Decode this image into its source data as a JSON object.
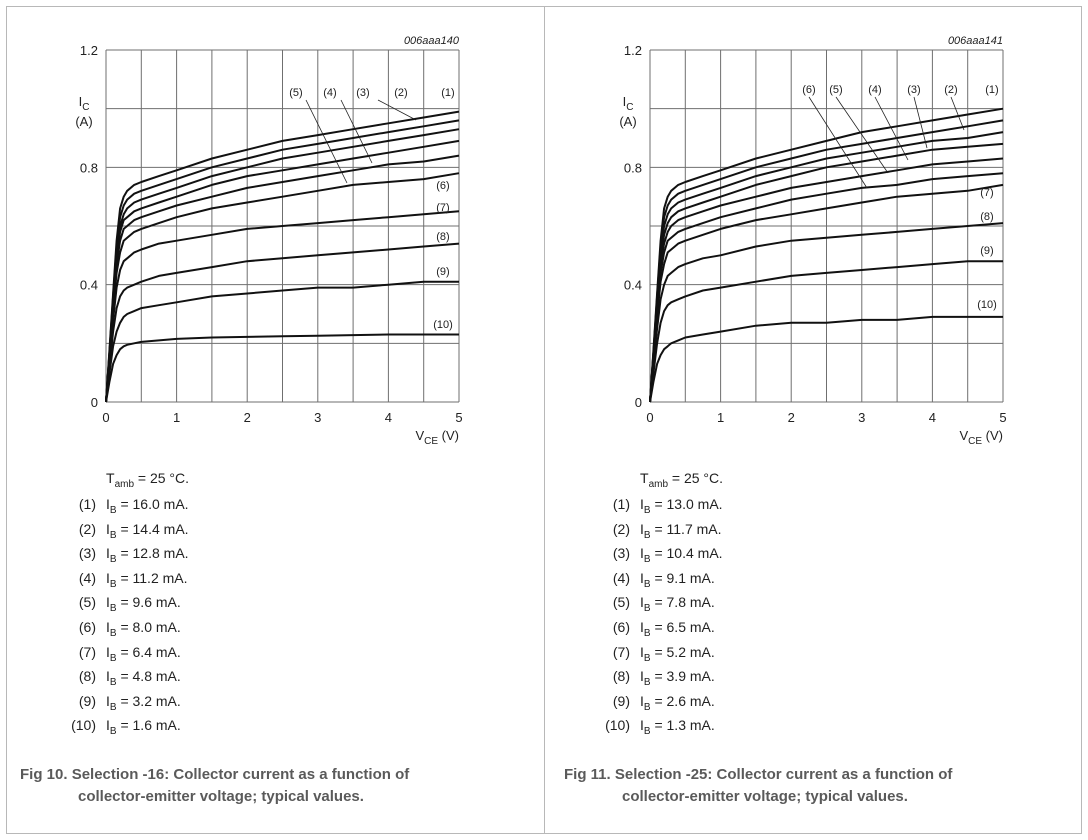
{
  "chart_data": [
    {
      "type": "line",
      "code": "006aaa140",
      "ylabel_sym": "I",
      "ylabel_sub": "C",
      "ylabel_unit": "(A)",
      "xlabel_sym": "V",
      "xlabel_sub": "CE",
      "xlabel_unit": "(V)",
      "xlim": [
        0,
        5
      ],
      "ylim": [
        0,
        1.2
      ],
      "xticks": [
        "0",
        "1",
        "2",
        "3",
        "4",
        "5"
      ],
      "yticks": [
        "0",
        "0.4",
        "0.8",
        "1.2"
      ],
      "grid": true,
      "x": [
        0,
        0.05,
        0.1,
        0.15,
        0.2,
        0.25,
        0.3,
        0.4,
        0.5,
        0.75,
        1,
        1.5,
        2,
        2.5,
        3,
        3.5,
        4,
        4.5,
        5
      ],
      "series": [
        {
          "name": "(1)",
          "values": [
            0,
            0.18,
            0.37,
            0.55,
            0.66,
            0.7,
            0.72,
            0.74,
            0.75,
            0.77,
            0.79,
            0.83,
            0.86,
            0.89,
            0.91,
            0.93,
            0.95,
            0.97,
            0.99
          ]
        },
        {
          "name": "(2)",
          "values": [
            0,
            0.17,
            0.36,
            0.53,
            0.63,
            0.67,
            0.69,
            0.71,
            0.72,
            0.74,
            0.76,
            0.8,
            0.83,
            0.86,
            0.88,
            0.9,
            0.92,
            0.94,
            0.96
          ]
        },
        {
          "name": "(3)",
          "values": [
            0,
            0.17,
            0.35,
            0.51,
            0.6,
            0.64,
            0.66,
            0.68,
            0.69,
            0.71,
            0.73,
            0.77,
            0.8,
            0.83,
            0.85,
            0.87,
            0.89,
            0.91,
            0.93
          ]
        },
        {
          "name": "(4)",
          "values": [
            0,
            0.16,
            0.34,
            0.49,
            0.58,
            0.62,
            0.63,
            0.65,
            0.66,
            0.68,
            0.7,
            0.74,
            0.77,
            0.79,
            0.81,
            0.83,
            0.85,
            0.87,
            0.89
          ]
        },
        {
          "name": "(5)",
          "values": [
            0,
            0.16,
            0.33,
            0.47,
            0.55,
            0.59,
            0.6,
            0.62,
            0.63,
            0.65,
            0.67,
            0.7,
            0.73,
            0.75,
            0.77,
            0.79,
            0.81,
            0.82,
            0.84
          ]
        },
        {
          "name": "(6)",
          "values": [
            0,
            0.15,
            0.31,
            0.44,
            0.51,
            0.55,
            0.56,
            0.58,
            0.59,
            0.61,
            0.63,
            0.66,
            0.68,
            0.7,
            0.72,
            0.74,
            0.75,
            0.76,
            0.78
          ]
        },
        {
          "name": "(7)",
          "values": [
            0,
            0.14,
            0.28,
            0.39,
            0.45,
            0.48,
            0.49,
            0.51,
            0.52,
            0.54,
            0.55,
            0.57,
            0.59,
            0.6,
            0.61,
            0.62,
            0.63,
            0.64,
            0.65
          ]
        },
        {
          "name": "(8)",
          "values": [
            0,
            0.12,
            0.24,
            0.32,
            0.36,
            0.38,
            0.39,
            0.4,
            0.41,
            0.43,
            0.44,
            0.46,
            0.48,
            0.49,
            0.5,
            0.51,
            0.52,
            0.53,
            0.54
          ]
        },
        {
          "name": "(9)",
          "values": [
            0,
            0.1,
            0.19,
            0.24,
            0.27,
            0.29,
            0.3,
            0.31,
            0.32,
            0.33,
            0.34,
            0.36,
            0.37,
            0.38,
            0.39,
            0.39,
            0.4,
            0.41,
            0.41
          ]
        },
        {
          "name": "(10)",
          "values": [
            0,
            0.07,
            0.13,
            0.16,
            0.18,
            0.19,
            0.195,
            0.2,
            0.205,
            0.21,
            0.215,
            0.22,
            0.222,
            0.224,
            0.226,
            0.228,
            0.23,
            0.23,
            0.23
          ]
        }
      ],
      "ambient_label": "T",
      "ambient_sub": "amb",
      "ambient_value": "= 25 °C.",
      "legend": [
        {
          "num": "(1)",
          "sym": "I",
          "sub": "B",
          "text": "= 16.0 mA."
        },
        {
          "num": "(2)",
          "sym": "I",
          "sub": "B",
          "text": "= 14.4 mA."
        },
        {
          "num": "(3)",
          "sym": "I",
          "sub": "B",
          "text": "= 12.8 mA."
        },
        {
          "num": "(4)",
          "sym": "I",
          "sub": "B",
          "text": "= 11.2 mA."
        },
        {
          "num": "(5)",
          "sym": "I",
          "sub": "B",
          "text": "= 9.6 mA."
        },
        {
          "num": "(6)",
          "sym": "I",
          "sub": "B",
          "text": "= 8.0 mA."
        },
        {
          "num": "(7)",
          "sym": "I",
          "sub": "B",
          "text": "= 6.4 mA."
        },
        {
          "num": "(8)",
          "sym": "I",
          "sub": "B",
          "text": "= 4.8 mA."
        },
        {
          "num": "(9)",
          "sym": "I",
          "sub": "B",
          "text": "= 3.2 mA."
        },
        {
          "num": "(10)",
          "sym": "I",
          "sub": "B",
          "text": "= 1.6 mA."
        }
      ],
      "caption_label": "Fig 10.",
      "caption_line1": "Selection -16: Collector current as a function of",
      "caption_line2": "collector-emitter voltage; typical values."
    },
    {
      "type": "line",
      "code": "006aaa141",
      "ylabel_sym": "I",
      "ylabel_sub": "C",
      "ylabel_unit": "(A)",
      "xlabel_sym": "V",
      "xlabel_sub": "CE",
      "xlabel_unit": "(V)",
      "xlim": [
        0,
        5
      ],
      "ylim": [
        0,
        1.2
      ],
      "xticks": [
        "0",
        "1",
        "2",
        "3",
        "4",
        "5"
      ],
      "yticks": [
        "0",
        "0.4",
        "0.8",
        "1.2"
      ],
      "grid": true,
      "x": [
        0,
        0.05,
        0.1,
        0.15,
        0.2,
        0.25,
        0.3,
        0.4,
        0.5,
        0.75,
        1,
        1.5,
        2,
        2.5,
        3,
        3.5,
        4,
        4.5,
        5
      ],
      "series": [
        {
          "name": "(1)",
          "values": [
            0,
            0.18,
            0.37,
            0.55,
            0.66,
            0.7,
            0.72,
            0.74,
            0.75,
            0.77,
            0.79,
            0.83,
            0.86,
            0.89,
            0.92,
            0.94,
            0.96,
            0.98,
            1.0
          ]
        },
        {
          "name": "(2)",
          "values": [
            0,
            0.17,
            0.36,
            0.53,
            0.63,
            0.67,
            0.69,
            0.71,
            0.72,
            0.74,
            0.76,
            0.8,
            0.83,
            0.86,
            0.88,
            0.9,
            0.92,
            0.94,
            0.96
          ]
        },
        {
          "name": "(3)",
          "values": [
            0,
            0.17,
            0.35,
            0.51,
            0.6,
            0.64,
            0.66,
            0.68,
            0.69,
            0.71,
            0.73,
            0.77,
            0.8,
            0.83,
            0.85,
            0.87,
            0.89,
            0.9,
            0.92
          ]
        },
        {
          "name": "(4)",
          "values": [
            0,
            0.16,
            0.34,
            0.49,
            0.57,
            0.61,
            0.63,
            0.65,
            0.66,
            0.68,
            0.7,
            0.74,
            0.77,
            0.8,
            0.82,
            0.84,
            0.86,
            0.87,
            0.88
          ]
        },
        {
          "name": "(5)",
          "values": [
            0,
            0.16,
            0.33,
            0.47,
            0.54,
            0.58,
            0.6,
            0.62,
            0.63,
            0.65,
            0.67,
            0.7,
            0.73,
            0.75,
            0.77,
            0.79,
            0.81,
            0.82,
            0.83
          ]
        },
        {
          "name": "(6)",
          "values": [
            0,
            0.15,
            0.31,
            0.44,
            0.51,
            0.55,
            0.56,
            0.58,
            0.59,
            0.61,
            0.63,
            0.66,
            0.69,
            0.71,
            0.73,
            0.74,
            0.76,
            0.77,
            0.78
          ]
        },
        {
          "name": "(7)",
          "values": [
            0,
            0.14,
            0.29,
            0.41,
            0.47,
            0.51,
            0.52,
            0.54,
            0.55,
            0.57,
            0.59,
            0.62,
            0.64,
            0.66,
            0.68,
            0.7,
            0.71,
            0.72,
            0.74
          ]
        },
        {
          "name": "(8)",
          "values": [
            0,
            0.13,
            0.25,
            0.35,
            0.4,
            0.43,
            0.44,
            0.46,
            0.47,
            0.49,
            0.5,
            0.53,
            0.55,
            0.56,
            0.57,
            0.58,
            0.59,
            0.6,
            0.61
          ]
        },
        {
          "name": "(9)",
          "values": [
            0,
            0.1,
            0.2,
            0.27,
            0.31,
            0.33,
            0.34,
            0.35,
            0.36,
            0.38,
            0.39,
            0.41,
            0.43,
            0.44,
            0.45,
            0.46,
            0.47,
            0.48,
            0.48
          ]
        },
        {
          "name": "(10)",
          "values": [
            0,
            0.07,
            0.13,
            0.16,
            0.18,
            0.19,
            0.2,
            0.21,
            0.22,
            0.23,
            0.24,
            0.26,
            0.27,
            0.27,
            0.28,
            0.28,
            0.29,
            0.29,
            0.29
          ]
        }
      ],
      "ambient_label": "T",
      "ambient_sub": "amb",
      "ambient_value": "= 25 °C.",
      "legend": [
        {
          "num": "(1)",
          "sym": "I",
          "sub": "B",
          "text": "= 13.0 mA."
        },
        {
          "num": "(2)",
          "sym": "I",
          "sub": "B",
          "text": "= 11.7 mA."
        },
        {
          "num": "(3)",
          "sym": "I",
          "sub": "B",
          "text": "= 10.4 mA."
        },
        {
          "num": "(4)",
          "sym": "I",
          "sub": "B",
          "text": "= 9.1 mA."
        },
        {
          "num": "(5)",
          "sym": "I",
          "sub": "B",
          "text": "= 7.8 mA."
        },
        {
          "num": "(6)",
          "sym": "I",
          "sub": "B",
          "text": "= 6.5 mA."
        },
        {
          "num": "(7)",
          "sym": "I",
          "sub": "B",
          "text": "= 5.2 mA."
        },
        {
          "num": "(8)",
          "sym": "I",
          "sub": "B",
          "text": "= 3.9 mA."
        },
        {
          "num": "(9)",
          "sym": "I",
          "sub": "B",
          "text": "= 2.6 mA."
        },
        {
          "num": "(10)",
          "sym": "I",
          "sub": "B",
          "text": "= 1.3 mA."
        }
      ],
      "caption_label": "Fig 11.",
      "caption_line1": "Selection -25: Collector current as a function of",
      "caption_line2": "collector-emitter voltage; typical values."
    }
  ]
}
